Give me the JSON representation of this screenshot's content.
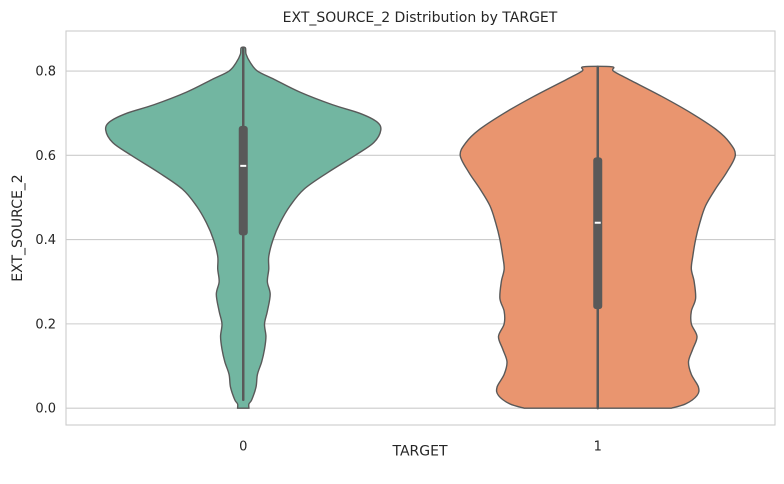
{
  "chart_data": {
    "type": "violin",
    "title": "EXT_SOURCE_2 Distribution by TARGET",
    "xlabel": "TARGET",
    "ylabel": "EXT_SOURCE_2",
    "categories": [
      "0",
      "1"
    ],
    "ylim": [
      -0.04,
      0.895
    ],
    "yticks": [
      0.0,
      0.2,
      0.4,
      0.6,
      0.8
    ],
    "ytick_labels": [
      "0.0",
      "0.2",
      "0.4",
      "0.6",
      "0.8"
    ],
    "grid": "horizontal",
    "legend": "none",
    "violins": [
      {
        "category": "0",
        "color": "#72b6a1",
        "min": 0.02,
        "q1": 0.41,
        "median": 0.575,
        "q3": 0.67,
        "max": 0.855,
        "density_y": [
          0.0,
          0.01,
          0.02,
          0.05,
          0.08,
          0.11,
          0.14,
          0.17,
          0.2,
          0.23,
          0.27,
          0.3,
          0.33,
          0.36,
          0.4,
          0.44,
          0.48,
          0.52,
          0.56,
          0.6,
          0.63,
          0.66,
          0.68,
          0.7,
          0.72,
          0.75,
          0.78,
          0.8,
          0.82,
          0.84,
          0.855
        ],
        "density_width": [
          0.04,
          0.04,
          0.06,
          0.09,
          0.1,
          0.13,
          0.15,
          0.16,
          0.15,
          0.17,
          0.19,
          0.17,
          0.18,
          0.18,
          0.21,
          0.26,
          0.33,
          0.43,
          0.6,
          0.79,
          0.92,
          0.97,
          0.94,
          0.82,
          0.63,
          0.4,
          0.22,
          0.1,
          0.05,
          0.02,
          0.015
        ]
      },
      {
        "category": "1",
        "color": "#e9956f",
        "min": 0.0,
        "q1": 0.235,
        "median": 0.44,
        "q3": 0.595,
        "max": 0.81,
        "density_y": [
          0.0,
          0.01,
          0.03,
          0.05,
          0.08,
          0.11,
          0.14,
          0.17,
          0.2,
          0.23,
          0.26,
          0.3,
          0.33,
          0.36,
          0.4,
          0.44,
          0.48,
          0.52,
          0.56,
          0.6,
          0.63,
          0.66,
          0.7,
          0.74,
          0.78,
          0.8,
          0.81
        ],
        "density_width": [
          0.52,
          0.62,
          0.7,
          0.71,
          0.66,
          0.64,
          0.67,
          0.7,
          0.66,
          0.66,
          0.69,
          0.68,
          0.66,
          0.67,
          0.69,
          0.72,
          0.76,
          0.83,
          0.91,
          0.97,
          0.93,
          0.84,
          0.66,
          0.45,
          0.22,
          0.11,
          0.1
        ]
      }
    ]
  }
}
